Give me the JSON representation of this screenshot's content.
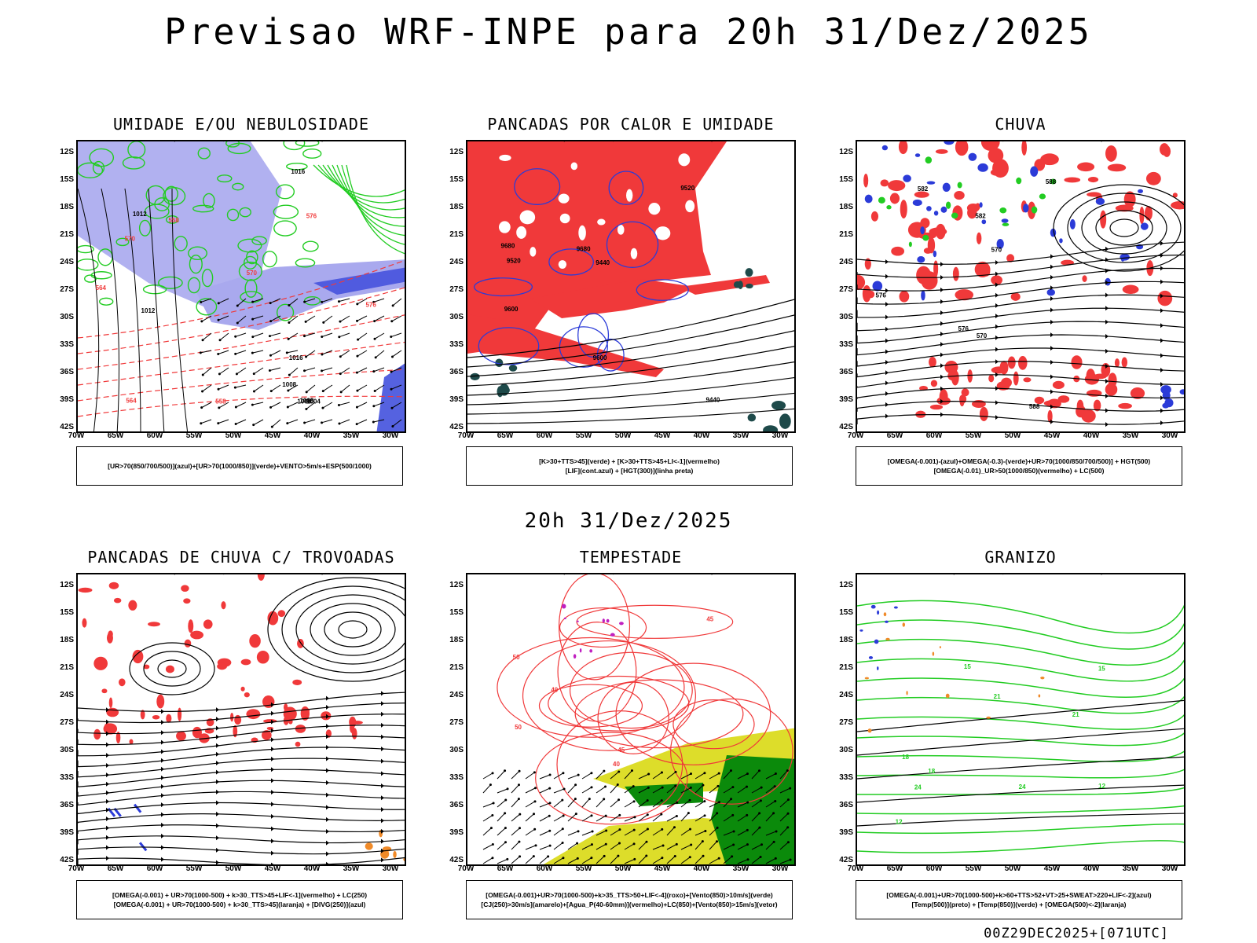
{
  "main_title": "Previsao WRF-INPE  para 20h 31/Dez/2025",
  "mid_title": "20h 31/Dez/2025",
  "footer": "00Z29DEC2025+[071UTC]",
  "axes": {
    "lat_labels": [
      "12S",
      "15S",
      "18S",
      "21S",
      "24S",
      "27S",
      "30S",
      "33S",
      "36S",
      "39S",
      "42S"
    ],
    "lon_labels": [
      "70W",
      "65W",
      "60W",
      "55W",
      "50W",
      "45W",
      "40W",
      "35W",
      "30W"
    ]
  },
  "colors": {
    "red": "#f0393a",
    "green": "#22cc22",
    "blue": "#2b3bd8",
    "lavender": "#a9a9ee",
    "yellow": "#dddd2a",
    "darkgreen": "#0b8a0b",
    "teal": "#1e4a4a",
    "orange": "#f08a28",
    "magenta": "#c020c0"
  },
  "panels": [
    {
      "id": "umidade",
      "title": "UMIDADE E/OU NEBULOSIDADE",
      "legend": [
        "[UR>70(850/700/500)](azul)+[UR>70(1000/850)](verde)+VENTO>5m/s+ESP(500/1000)"
      ],
      "contour_labels": [
        "1008",
        "1012",
        "1016",
        "1004",
        "576",
        "570",
        "564",
        "558"
      ]
    },
    {
      "id": "pancadas-calor",
      "title": "PANCADAS POR CALOR E UMIDADE",
      "legend": [
        "[K>30+TTS>45](verde) + [K>30+TTS>45+LI<-1](vermelho)",
        "[LIF](cont.azul) + [HGT(300)](linha preta)"
      ],
      "contour_labels": [
        "9600",
        "9680",
        "9520",
        "9440"
      ]
    },
    {
      "id": "chuva",
      "title": "CHUVA",
      "legend": [
        "[OMEGA(-0.001)-(azul)+OMEGA(-0.3)-(verde)+UR>70(1000/850/700/500)] + HGT(500)",
        "[OMEGA(-0.01)_UR>50(1000/850)(vermelho) + LC(500)"
      ],
      "contour_labels": [
        "588",
        "582",
        "576",
        "570"
      ]
    },
    {
      "id": "trovoadas",
      "title": "PANCADAS DE CHUVA C/ TROVOADAS",
      "legend": [
        "[OMEGA(-0.001) + UR>70(1000-500) + k>30_TTS>45+LIF<-1](vermelho) + LC(250)",
        "[OMEGA(-0.001) + UR>70(1000-500) + k>30_TTS>45](laranja) + [DIVG(250)](azul)"
      ],
      "contour_labels": []
    },
    {
      "id": "tempestade",
      "title": "TEMPESTADE",
      "legend": [
        "[OMEGA(-0.001)+UR>70(1000-500)+k>35_TTS>50+LIF<-4](roxo)+[Vento(850)>10m/s](verde)",
        "[CJ(250)>30m/s](amarelo)+[Agua_P(40-60mm)](vermelho)+LC(850)+[Vento(850)>15m/s](vetor)"
      ],
      "contour_labels": [
        "50",
        "40",
        "45"
      ]
    },
    {
      "id": "granizo",
      "title": "GRANIZO",
      "legend": [
        "[OMEGA(-0.001)+UR>70(1000-500)+k>60+TTS>52+VT>25+SWEAT>220+LIF<-2](azul)",
        "[Temp(500)](preto) + [Temp(850)](verde) + [OMEGA(500)<-2](laranja)"
      ],
      "contour_labels": [
        "12",
        "15",
        "18",
        "21",
        "24"
      ]
    }
  ]
}
